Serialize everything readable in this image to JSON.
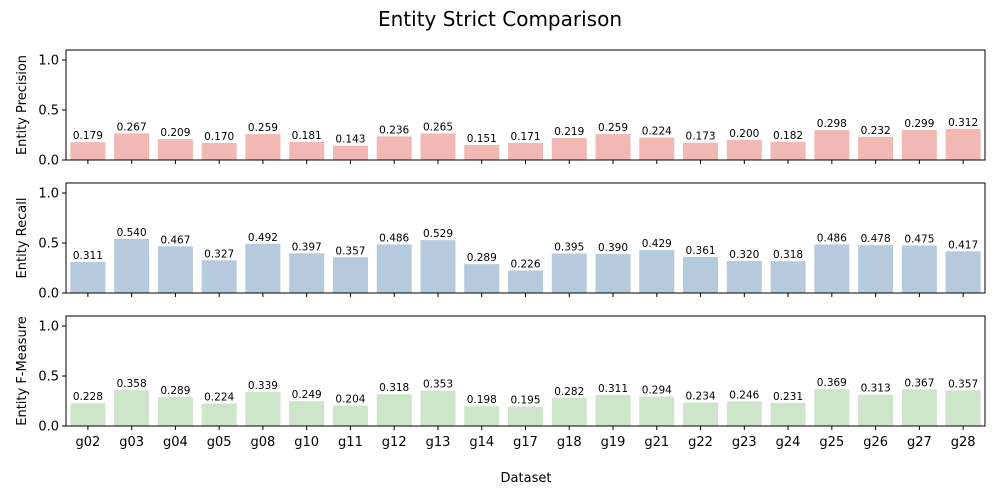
{
  "chart_data": {
    "type": "bar",
    "title": "Entity Strict Comparison",
    "xlabel": "Dataset",
    "categories": [
      "g02",
      "g03",
      "g04",
      "g05",
      "g08",
      "g10",
      "g11",
      "g12",
      "g13",
      "g14",
      "g17",
      "g18",
      "g19",
      "g21",
      "g22",
      "g23",
      "g24",
      "g25",
      "g26",
      "g27",
      "g28"
    ],
    "ylim": [
      0,
      1.1
    ],
    "yticks": [
      "0.0",
      "0.5",
      "1.0"
    ],
    "grid": false,
    "subplots": [
      {
        "ylabel": "Entity Precision",
        "color": "#f2b8b3",
        "values": [
          0.179,
          0.267,
          0.209,
          0.17,
          0.259,
          0.181,
          0.143,
          0.236,
          0.265,
          0.151,
          0.171,
          0.219,
          0.259,
          0.224,
          0.173,
          0.2,
          0.182,
          0.298,
          0.232,
          0.299,
          0.312
        ],
        "labels": [
          "0.179",
          "0.267",
          "0.209",
          "0.170",
          "0.259",
          "0.181",
          "0.143",
          "0.236",
          "0.265",
          "0.151",
          "0.171",
          "0.219",
          "0.259",
          "0.224",
          "0.173",
          "0.200",
          "0.182",
          "0.298",
          "0.232",
          "0.299",
          "0.312"
        ]
      },
      {
        "ylabel": "Entity Recall",
        "color": "#b6cadd",
        "values": [
          0.311,
          0.54,
          0.467,
          0.327,
          0.492,
          0.397,
          0.357,
          0.486,
          0.529,
          0.289,
          0.226,
          0.395,
          0.39,
          0.429,
          0.361,
          0.32,
          0.318,
          0.486,
          0.478,
          0.475,
          0.417
        ],
        "labels": [
          "0.311",
          "0.540",
          "0.467",
          "0.327",
          "0.492",
          "0.397",
          "0.357",
          "0.486",
          "0.529",
          "0.289",
          "0.226",
          "0.395",
          "0.390",
          "0.429",
          "0.361",
          "0.320",
          "0.318",
          "0.486",
          "0.478",
          "0.475",
          "0.417"
        ]
      },
      {
        "ylabel": "Entity F-Measure",
        "color": "#cde5c8",
        "values": [
          0.228,
          0.358,
          0.289,
          0.224,
          0.339,
          0.249,
          0.204,
          0.318,
          0.353,
          0.198,
          0.195,
          0.282,
          0.311,
          0.294,
          0.234,
          0.246,
          0.231,
          0.369,
          0.313,
          0.367,
          0.357
        ],
        "labels": [
          "0.228",
          "0.358",
          "0.289",
          "0.224",
          "0.339",
          "0.249",
          "0.204",
          "0.318",
          "0.353",
          "0.198",
          "0.195",
          "0.282",
          "0.311",
          "0.294",
          "0.234",
          "0.246",
          "0.231",
          "0.369",
          "0.313",
          "0.367",
          "0.357"
        ]
      }
    ]
  }
}
